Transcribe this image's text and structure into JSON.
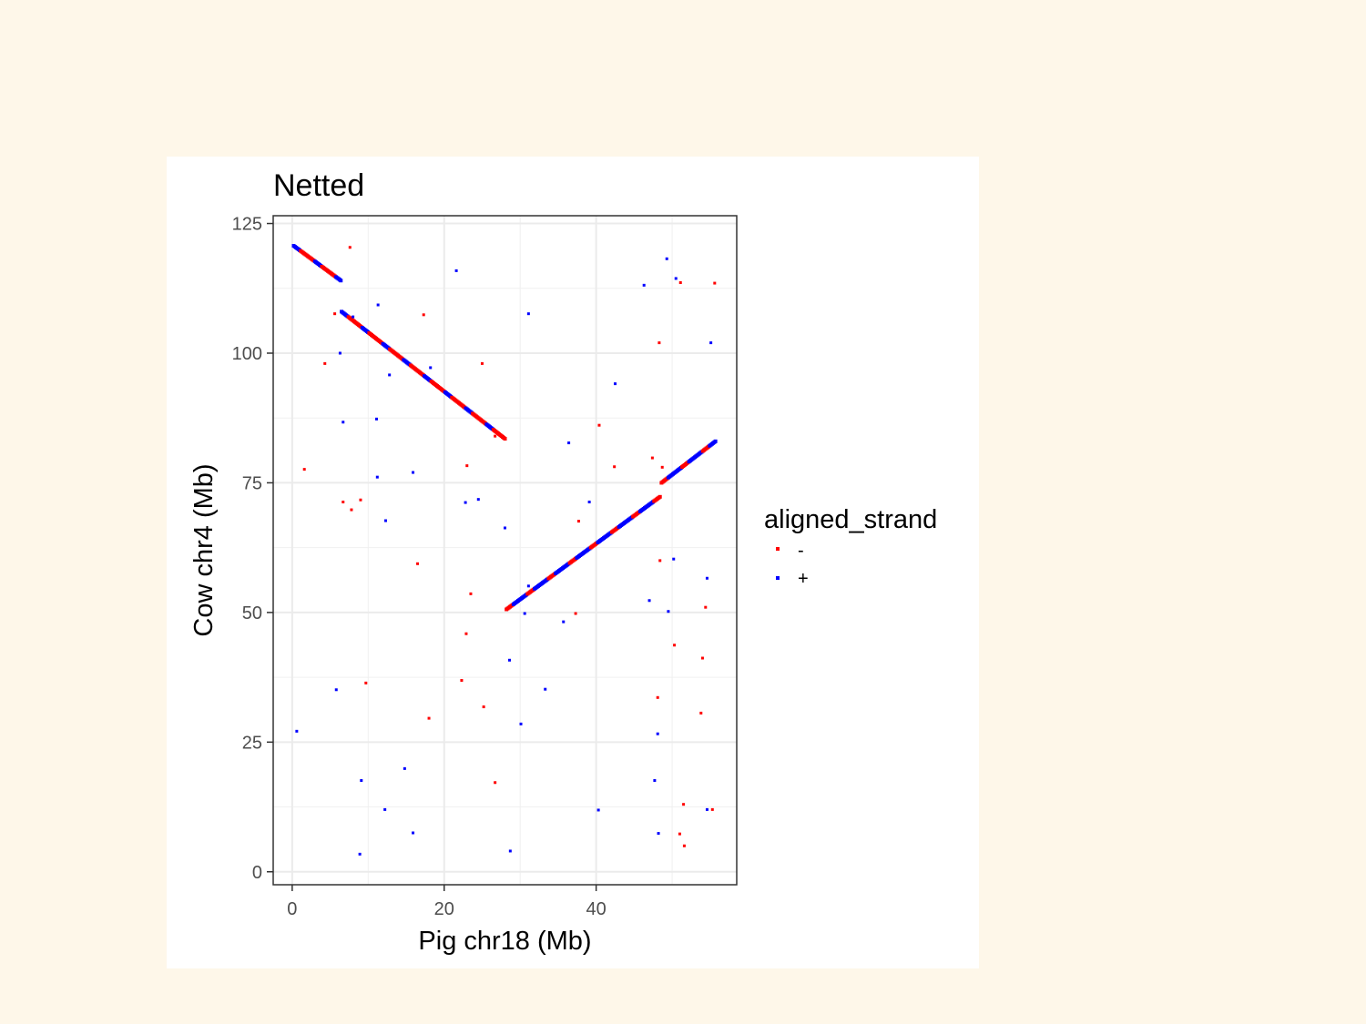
{
  "chart_data": {
    "type": "scatter",
    "title": "Netted",
    "xlabel": "Pig chr18 (Mb)",
    "ylabel": "Cow chr4 (Mb)",
    "xlim": [
      -2.5,
      58.5
    ],
    "ylim": [
      -2.5,
      126.5
    ],
    "xticks": [
      0,
      20,
      40
    ],
    "yticks": [
      0,
      25,
      50,
      75,
      100,
      125
    ],
    "grid": true,
    "legend": {
      "title": "aligned_strand",
      "position": "right",
      "entries": [
        {
          "label": "-",
          "color": "#ff0000"
        },
        {
          "label": "+",
          "color": "#0000ff"
        }
      ]
    },
    "segments": [
      {
        "strand": "-",
        "x": [
          0.2,
          6.4
        ],
        "y": [
          120.7,
          114.0
        ]
      },
      {
        "strand": "-",
        "x": [
          6.5,
          28.0
        ],
        "y": [
          108.0,
          83.5
        ]
      },
      {
        "strand": "+",
        "x": [
          28.2,
          48.4
        ],
        "y": [
          50.6,
          72.3
        ]
      },
      {
        "strand": "+",
        "x": [
          48.6,
          55.7
        ],
        "y": [
          75.0,
          83.0
        ]
      }
    ],
    "series": [
      {
        "name": "-",
        "color": "#ff0000",
        "points": [
          [
            7.6,
            120.4
          ],
          [
            5.6,
            107.6
          ],
          [
            4.3,
            98.0
          ],
          [
            17.3,
            107.4
          ],
          [
            25.0,
            98.0
          ],
          [
            1.6,
            77.6
          ],
          [
            6.7,
            71.3
          ],
          [
            7.8,
            69.8
          ],
          [
            9.0,
            71.7
          ],
          [
            16.5,
            59.4
          ],
          [
            23.0,
            78.3
          ],
          [
            26.7,
            84.0
          ],
          [
            23.5,
            53.6
          ],
          [
            22.9,
            45.9
          ],
          [
            9.7,
            36.4
          ],
          [
            18.0,
            29.6
          ],
          [
            22.3,
            36.9
          ],
          [
            25.2,
            31.8
          ],
          [
            26.7,
            17.2
          ],
          [
            40.4,
            86.1
          ],
          [
            42.4,
            78.1
          ],
          [
            37.7,
            67.6
          ],
          [
            37.3,
            49.8
          ],
          [
            47.4,
            79.8
          ],
          [
            48.7,
            78.0
          ],
          [
            48.3,
            102.0
          ],
          [
            51.1,
            113.6
          ],
          [
            55.6,
            113.5
          ],
          [
            48.4,
            60.0
          ],
          [
            50.3,
            43.7
          ],
          [
            48.1,
            33.6
          ],
          [
            54.4,
            51.0
          ],
          [
            54.0,
            41.2
          ],
          [
            53.8,
            30.6
          ],
          [
            51.5,
            13.0
          ],
          [
            55.3,
            12.0
          ],
          [
            51.0,
            7.3
          ],
          [
            51.6,
            5.0
          ]
        ]
      },
      {
        "name": "+",
        "color": "#0000ff",
        "points": [
          [
            21.6,
            115.9
          ],
          [
            11.3,
            109.3
          ],
          [
            8.0,
            107.0
          ],
          [
            6.3,
            100.0
          ],
          [
            12.8,
            95.8
          ],
          [
            18.2,
            97.2
          ],
          [
            31.1,
            107.6
          ],
          [
            6.7,
            86.7
          ],
          [
            11.1,
            87.3
          ],
          [
            11.2,
            76.1
          ],
          [
            15.9,
            77.0
          ],
          [
            12.3,
            67.7
          ],
          [
            22.8,
            71.2
          ],
          [
            24.5,
            71.8
          ],
          [
            28.0,
            66.3
          ],
          [
            36.4,
            82.7
          ],
          [
            39.1,
            71.3
          ],
          [
            42.5,
            94.1
          ],
          [
            31.1,
            55.1
          ],
          [
            30.6,
            49.8
          ],
          [
            35.7,
            48.2
          ],
          [
            28.6,
            40.8
          ],
          [
            33.3,
            35.2
          ],
          [
            30.1,
            28.5
          ],
          [
            5.8,
            35.1
          ],
          [
            0.6,
            27.1
          ],
          [
            9.1,
            17.6
          ],
          [
            14.8,
            19.9
          ],
          [
            12.2,
            12.0
          ],
          [
            15.9,
            7.5
          ],
          [
            8.9,
            3.4
          ],
          [
            28.7,
            4.0
          ],
          [
            40.3,
            11.9
          ],
          [
            46.3,
            113.1
          ],
          [
            49.3,
            118.2
          ],
          [
            50.5,
            114.4
          ],
          [
            55.1,
            102.0
          ],
          [
            47.0,
            52.3
          ],
          [
            49.5,
            50.2
          ],
          [
            50.2,
            60.3
          ],
          [
            54.6,
            56.6
          ],
          [
            47.7,
            17.6
          ],
          [
            48.1,
            26.6
          ],
          [
            48.2,
            7.4
          ],
          [
            54.6,
            12.0
          ]
        ]
      }
    ]
  }
}
